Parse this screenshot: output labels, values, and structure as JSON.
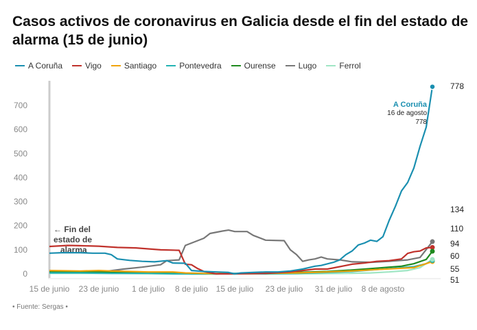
{
  "title": "Casos activos de coronavirus en Galicia desde el fin del estado de alarma (15 de junio)",
  "source": "• Fuente: Sergas •",
  "chart_data": {
    "type": "line",
    "title": "Casos activos de coronavirus en Galicia desde el fin del estado de alarma (15 de junio)",
    "xlabel": "",
    "ylabel": "",
    "ylim": [
      0,
      780
    ],
    "y_ticks": [
      0,
      100,
      200,
      300,
      400,
      500,
      600,
      700
    ],
    "x_range": [
      "2020-06-15",
      "2020-08-16"
    ],
    "x_ticks": [
      {
        "date": "2020-06-15",
        "label": "15 de junio"
      },
      {
        "date": "2020-06-23",
        "label": "23 de junio"
      },
      {
        "date": "2020-07-01",
        "label": "1 de julio"
      },
      {
        "date": "2020-07-08",
        "label": "8 de julio"
      },
      {
        "date": "2020-07-15",
        "label": "15 de julio"
      },
      {
        "date": "2020-07-23",
        "label": "23 de julio"
      },
      {
        "date": "2020-07-31",
        "label": "31 de julio"
      },
      {
        "date": "2020-08-08",
        "label": "8 de agosto"
      }
    ],
    "grid": false,
    "legend_position": "top",
    "annotation": {
      "text": [
        "← Fin del",
        "estado de",
        "alarma"
      ],
      "date": "2020-06-15"
    },
    "callout": {
      "series": "A Coruña",
      "name": "A Coruña",
      "date_label": "16 de agosto",
      "value": 778
    },
    "end_labels": [
      "778",
      "134",
      "110",
      "94",
      "60",
      "55",
      "51"
    ],
    "series": [
      {
        "name": "A Coruña",
        "color": "#1a8fb0",
        "end_value": 778,
        "points": [
          [
            "2020-06-15",
            86
          ],
          [
            "2020-06-17",
            88
          ],
          [
            "2020-06-20",
            88
          ],
          [
            "2020-06-22",
            86
          ],
          [
            "2020-06-24",
            86
          ],
          [
            "2020-06-25",
            80
          ],
          [
            "2020-06-26",
            62
          ],
          [
            "2020-06-28",
            56
          ],
          [
            "2020-06-30",
            52
          ],
          [
            "2020-07-02",
            50
          ],
          [
            "2020-07-04",
            55
          ],
          [
            "2020-07-05",
            45
          ],
          [
            "2020-07-07",
            44
          ],
          [
            "2020-07-08",
            14
          ],
          [
            "2020-07-10",
            10
          ],
          [
            "2020-07-12",
            8
          ],
          [
            "2020-07-14",
            6
          ],
          [
            "2020-07-15",
            0
          ],
          [
            "2020-07-16",
            4
          ],
          [
            "2020-07-18",
            6
          ],
          [
            "2020-07-20",
            8
          ],
          [
            "2020-07-22",
            8
          ],
          [
            "2020-07-24",
            12
          ],
          [
            "2020-07-26",
            20
          ],
          [
            "2020-07-28",
            32
          ],
          [
            "2020-07-29",
            35
          ],
          [
            "2020-07-31",
            48
          ],
          [
            "2020-08-01",
            58
          ],
          [
            "2020-08-02",
            80
          ],
          [
            "2020-08-03",
            95
          ],
          [
            "2020-08-04",
            120
          ],
          [
            "2020-08-05",
            128
          ],
          [
            "2020-08-06",
            140
          ],
          [
            "2020-08-07",
            135
          ],
          [
            "2020-08-08",
            155
          ],
          [
            "2020-08-09",
            222
          ],
          [
            "2020-08-10",
            280
          ],
          [
            "2020-08-11",
            345
          ],
          [
            "2020-08-12",
            380
          ],
          [
            "2020-08-13",
            440
          ],
          [
            "2020-08-14",
            530
          ],
          [
            "2020-08-15",
            610
          ],
          [
            "2020-08-16",
            778
          ]
        ]
      },
      {
        "name": "Vigo",
        "color": "#c0312b",
        "end_value": 110,
        "points": [
          [
            "2020-06-15",
            114
          ],
          [
            "2020-06-18",
            118
          ],
          [
            "2020-06-20",
            117
          ],
          [
            "2020-06-23",
            115
          ],
          [
            "2020-06-26",
            110
          ],
          [
            "2020-06-29",
            108
          ],
          [
            "2020-07-01",
            104
          ],
          [
            "2020-07-03",
            100
          ],
          [
            "2020-07-06",
            98
          ],
          [
            "2020-07-07",
            40
          ],
          [
            "2020-07-08",
            38
          ],
          [
            "2020-07-09",
            22
          ],
          [
            "2020-07-10",
            10
          ],
          [
            "2020-07-12",
            0
          ],
          [
            "2020-07-15",
            0
          ],
          [
            "2020-07-20",
            2
          ],
          [
            "2020-07-24",
            8
          ],
          [
            "2020-07-26",
            14
          ],
          [
            "2020-07-28",
            20
          ],
          [
            "2020-07-30",
            20
          ],
          [
            "2020-08-01",
            30
          ],
          [
            "2020-08-03",
            40
          ],
          [
            "2020-08-05",
            45
          ],
          [
            "2020-08-07",
            52
          ],
          [
            "2020-08-09",
            55
          ],
          [
            "2020-08-11",
            62
          ],
          [
            "2020-08-12",
            85
          ],
          [
            "2020-08-13",
            92
          ],
          [
            "2020-08-14",
            95
          ],
          [
            "2020-08-15",
            108
          ],
          [
            "2020-08-16",
            110
          ]
        ]
      },
      {
        "name": "Santiago",
        "color": "#f0a30a",
        "end_value": 51,
        "points": [
          [
            "2020-06-15",
            14
          ],
          [
            "2020-06-20",
            12
          ],
          [
            "2020-06-23",
            14
          ],
          [
            "2020-06-25",
            12
          ],
          [
            "2020-06-28",
            10
          ],
          [
            "2020-07-01",
            8
          ],
          [
            "2020-07-05",
            8
          ],
          [
            "2020-07-07",
            4
          ],
          [
            "2020-07-10",
            2
          ],
          [
            "2020-07-15",
            0
          ],
          [
            "2020-07-20",
            2
          ],
          [
            "2020-07-25",
            4
          ],
          [
            "2020-07-30",
            8
          ],
          [
            "2020-08-03",
            12
          ],
          [
            "2020-08-07",
            18
          ],
          [
            "2020-08-10",
            22
          ],
          [
            "2020-08-13",
            26
          ],
          [
            "2020-08-16",
            51
          ]
        ]
      },
      {
        "name": "Pontevedra",
        "color": "#22b3b3",
        "end_value": 55,
        "points": [
          [
            "2020-06-15",
            4
          ],
          [
            "2020-06-20",
            4
          ],
          [
            "2020-06-25",
            2
          ],
          [
            "2020-07-01",
            2
          ],
          [
            "2020-07-05",
            0
          ],
          [
            "2020-07-10",
            0
          ],
          [
            "2020-07-15",
            2
          ],
          [
            "2020-07-20",
            0
          ],
          [
            "2020-07-25",
            2
          ],
          [
            "2020-07-30",
            6
          ],
          [
            "2020-08-03",
            10
          ],
          [
            "2020-08-07",
            18
          ],
          [
            "2020-08-10",
            24
          ],
          [
            "2020-08-13",
            30
          ],
          [
            "2020-08-15",
            42
          ],
          [
            "2020-08-16",
            55
          ]
        ]
      },
      {
        "name": "Ourense",
        "color": "#1e8a1e",
        "end_value": 94,
        "points": [
          [
            "2020-06-15",
            10
          ],
          [
            "2020-06-20",
            8
          ],
          [
            "2020-06-25",
            6
          ],
          [
            "2020-07-01",
            4
          ],
          [
            "2020-07-05",
            2
          ],
          [
            "2020-07-08",
            0
          ],
          [
            "2020-07-12",
            0
          ],
          [
            "2020-07-16",
            2
          ],
          [
            "2020-07-20",
            4
          ],
          [
            "2020-07-25",
            6
          ],
          [
            "2020-07-30",
            10
          ],
          [
            "2020-08-03",
            16
          ],
          [
            "2020-08-06",
            22
          ],
          [
            "2020-08-09",
            28
          ],
          [
            "2020-08-11",
            32
          ],
          [
            "2020-08-13",
            42
          ],
          [
            "2020-08-15",
            60
          ],
          [
            "2020-08-16",
            94
          ]
        ]
      },
      {
        "name": "Lugo",
        "color": "#777777",
        "end_value": 134,
        "points": [
          [
            "2020-06-15",
            8
          ],
          [
            "2020-06-20",
            8
          ],
          [
            "2020-06-24",
            10
          ],
          [
            "2020-06-27",
            20
          ],
          [
            "2020-06-30",
            28
          ],
          [
            "2020-07-03",
            38
          ],
          [
            "2020-07-04",
            55
          ],
          [
            "2020-07-06",
            58
          ],
          [
            "2020-07-07",
            118
          ],
          [
            "2020-07-08",
            128
          ],
          [
            "2020-07-10",
            148
          ],
          [
            "2020-07-11",
            168
          ],
          [
            "2020-07-13",
            178
          ],
          [
            "2020-07-14",
            182
          ],
          [
            "2020-07-15",
            176
          ],
          [
            "2020-07-17",
            176
          ],
          [
            "2020-07-18",
            160
          ],
          [
            "2020-07-20",
            140
          ],
          [
            "2020-07-23",
            138
          ],
          [
            "2020-07-24",
            100
          ],
          [
            "2020-07-25",
            80
          ],
          [
            "2020-07-26",
            52
          ],
          [
            "2020-07-27",
            58
          ],
          [
            "2020-07-28",
            62
          ],
          [
            "2020-07-29",
            70
          ],
          [
            "2020-07-30",
            62
          ],
          [
            "2020-08-01",
            58
          ],
          [
            "2020-08-03",
            50
          ],
          [
            "2020-08-06",
            48
          ],
          [
            "2020-08-09",
            52
          ],
          [
            "2020-08-12",
            58
          ],
          [
            "2020-08-14",
            68
          ],
          [
            "2020-08-16",
            134
          ]
        ]
      },
      {
        "name": "Ferrol",
        "color": "#9fe6c4",
        "end_value": 60,
        "points": [
          [
            "2020-06-15",
            2
          ],
          [
            "2020-06-25",
            2
          ],
          [
            "2020-07-05",
            0
          ],
          [
            "2020-07-15",
            0
          ],
          [
            "2020-07-25",
            0
          ],
          [
            "2020-08-02",
            2
          ],
          [
            "2020-08-06",
            4
          ],
          [
            "2020-08-09",
            8
          ],
          [
            "2020-08-12",
            14
          ],
          [
            "2020-08-14",
            26
          ],
          [
            "2020-08-16",
            60
          ]
        ]
      }
    ]
  }
}
